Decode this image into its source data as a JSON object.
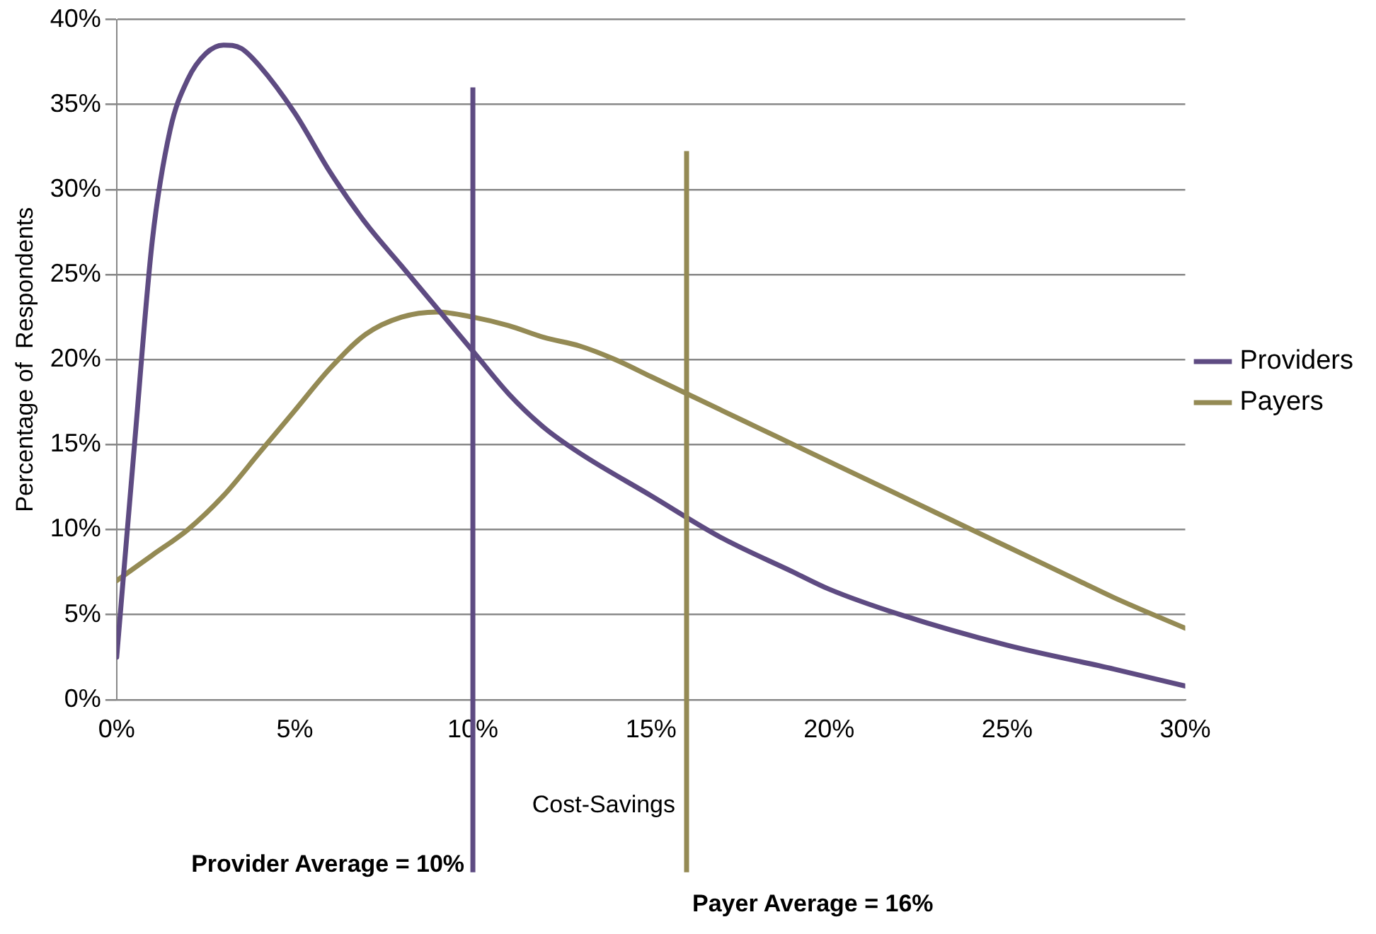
{
  "chart_data": {
    "type": "line",
    "xlabel": "Cost-Savings",
    "ylabel": "Percentage of  Respondents",
    "xlim": [
      0,
      30
    ],
    "xticks": [
      {
        "value": 0,
        "label": "0%"
      },
      {
        "value": 5,
        "label": "5%"
      },
      {
        "value": 10,
        "label": "10%"
      },
      {
        "value": 15,
        "label": "15%"
      },
      {
        "value": 20,
        "label": "20%"
      },
      {
        "value": 25,
        "label": "25%"
      },
      {
        "value": 30,
        "label": "30%"
      }
    ],
    "ylim": [
      0,
      40
    ],
    "yticks": [
      {
        "value": 0,
        "label": "0%"
      },
      {
        "value": 5,
        "label": "5%"
      },
      {
        "value": 10,
        "label": "10%"
      },
      {
        "value": 15,
        "label": "15%"
      },
      {
        "value": 20,
        "label": "20%"
      },
      {
        "value": 25,
        "label": "25%"
      },
      {
        "value": 30,
        "label": "30%"
      },
      {
        "value": 35,
        "label": "35%"
      },
      {
        "value": 40,
        "label": "40%"
      }
    ],
    "grid": "y",
    "legend": "right",
    "marker": "none",
    "line_style": "solid",
    "series": [
      {
        "name": "Providers",
        "color": "#5e4b82",
        "x": [
          0,
          0.5,
          1,
          1.5,
          2,
          2.5,
          3,
          3.5,
          4,
          5,
          6,
          7,
          8,
          9,
          10,
          11,
          12,
          13,
          15,
          17,
          19,
          20,
          22,
          25,
          28,
          30
        ],
        "values": [
          2.5,
          15,
          27,
          33.5,
          36.5,
          38,
          38.5,
          38.3,
          37.3,
          34.5,
          31,
          28,
          25.5,
          23,
          20.5,
          18,
          16,
          14.5,
          12,
          9.5,
          7.5,
          6.5,
          5,
          3.2,
          1.8,
          0.8
        ]
      },
      {
        "name": "Payers",
        "color": "#948a54",
        "x": [
          0,
          1,
          2,
          3,
          4,
          5,
          6,
          7,
          8,
          9,
          10,
          11,
          12,
          13,
          14,
          15,
          16,
          17,
          18,
          19,
          20,
          22,
          23,
          25,
          27,
          28,
          30
        ],
        "values": [
          7,
          8.5,
          10,
          12,
          14.5,
          17,
          19.5,
          21.5,
          22.5,
          22.8,
          22.5,
          22,
          21.3,
          20.8,
          20,
          19,
          18,
          17,
          16,
          15,
          14,
          12,
          11,
          9,
          7,
          6,
          4.2
        ]
      }
    ],
    "ref_lines": [
      {
        "axis": "x",
        "value": 10,
        "label": "Provider Average = 10%",
        "color": "#5e4b82"
      },
      {
        "axis": "x",
        "value": 16,
        "label": "Payer Average = 16%",
        "color": "#948a54"
      }
    ]
  }
}
